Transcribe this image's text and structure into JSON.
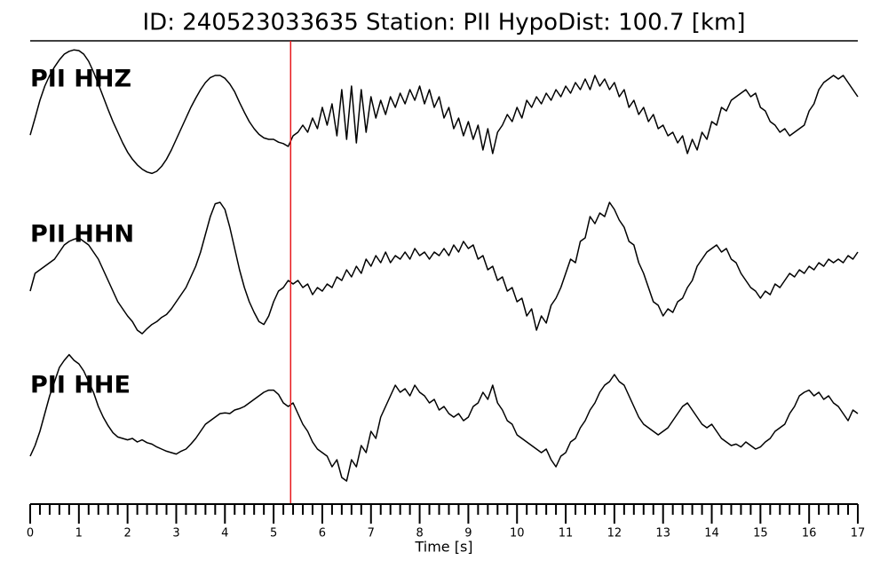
{
  "chart_data": {
    "type": "line",
    "title": "ID: 240523033635   Station: PII   HypoDist:   100.7 [km]",
    "xlabel": "Time [s]",
    "xlim": [
      0,
      17
    ],
    "xticks": [
      0,
      1,
      2,
      3,
      4,
      5,
      6,
      7,
      8,
      9,
      10,
      11,
      12,
      13,
      14,
      15,
      16,
      17
    ],
    "minor_xticks": [
      0.2,
      0.4,
      0.6,
      0.8,
      1.2,
      1.4,
      1.6,
      1.8,
      2.2,
      2.4,
      2.6,
      2.8,
      3.2,
      3.4,
      3.6,
      3.8,
      4.2,
      4.4,
      4.6,
      4.8,
      5.2,
      5.4,
      5.6,
      5.8,
      6.2,
      6.4,
      6.6,
      6.8,
      7.2,
      7.4,
      7.6,
      7.8,
      8.2,
      8.4,
      8.6,
      8.8,
      9.2,
      9.4,
      9.6,
      9.8,
      10.2,
      10.4,
      10.6,
      10.8,
      11.2,
      11.4,
      11.6,
      11.8,
      12.2,
      12.4,
      12.6,
      12.8,
      13.2,
      13.4,
      13.6,
      13.8,
      14.2,
      14.4,
      14.6,
      14.8,
      15.2,
      15.4,
      15.6,
      15.8,
      16.2,
      16.4,
      16.6,
      16.8
    ],
    "ylim": [
      -1,
      1
    ],
    "pick": {
      "x": 5.35,
      "color": "#e8191d"
    },
    "label_color": "#4e9a06",
    "x": [
      0,
      0.1,
      0.2,
      0.3,
      0.4,
      0.5,
      0.6,
      0.7,
      0.8,
      0.9,
      1,
      1.1,
      1.2,
      1.3,
      1.4,
      1.5,
      1.6,
      1.7,
      1.8,
      1.9,
      2,
      2.1,
      2.2,
      2.3,
      2.4,
      2.5,
      2.6,
      2.7,
      2.8,
      2.9,
      3,
      3.1,
      3.2,
      3.3,
      3.4,
      3.5,
      3.6,
      3.7,
      3.8,
      3.9,
      4,
      4.1,
      4.2,
      4.3,
      4.4,
      4.5,
      4.6,
      4.7,
      4.8,
      4.9,
      5,
      5.1,
      5.2,
      5.3,
      5.4,
      5.5,
      5.6,
      5.7,
      5.8,
      5.9,
      6,
      6.1,
      6.2,
      6.3,
      6.4,
      6.5,
      6.6,
      6.7,
      6.8,
      6.9,
      7,
      7.1,
      7.2,
      7.3,
      7.4,
      7.5,
      7.6,
      7.7,
      7.8,
      7.9,
      8,
      8.1,
      8.2,
      8.3,
      8.4,
      8.5,
      8.6,
      8.7,
      8.8,
      8.9,
      9,
      9.1,
      9.2,
      9.3,
      9.4,
      9.5,
      9.6,
      9.7,
      9.8,
      9.9,
      10,
      10.1,
      10.2,
      10.3,
      10.4,
      10.5,
      10.6,
      10.7,
      10.8,
      10.9,
      11,
      11.1,
      11.2,
      11.3,
      11.4,
      11.5,
      11.6,
      11.7,
      11.8,
      11.9,
      12,
      12.1,
      12.2,
      12.3,
      12.4,
      12.5,
      12.6,
      12.7,
      12.8,
      12.9,
      13,
      13.1,
      13.2,
      13.3,
      13.4,
      13.5,
      13.6,
      13.7,
      13.8,
      13.9,
      14,
      14.1,
      14.2,
      14.3,
      14.4,
      14.5,
      14.6,
      14.7,
      14.8,
      14.9,
      15,
      15.1,
      15.2,
      15.3,
      15.4,
      15.5,
      15.6,
      15.7,
      15.8,
      15.9,
      16,
      16.1,
      16.2,
      16.3,
      16.4,
      16.5,
      16.6,
      16.7,
      16.8,
      16.9,
      17
    ],
    "series": [
      {
        "name": "PII HHZ",
        "color": "#000000",
        "values": [
          -0.34,
          -0.1,
          0.15,
          0.35,
          0.5,
          0.62,
          0.72,
          0.8,
          0.84,
          0.86,
          0.85,
          0.8,
          0.7,
          0.55,
          0.38,
          0.2,
          0.02,
          -0.15,
          -0.3,
          -0.45,
          -0.58,
          -0.68,
          -0.76,
          -0.82,
          -0.86,
          -0.88,
          -0.85,
          -0.78,
          -0.68,
          -0.55,
          -0.4,
          -0.25,
          -0.1,
          0.05,
          0.18,
          0.3,
          0.4,
          0.47,
          0.5,
          0.5,
          0.46,
          0.38,
          0.27,
          0.12,
          -0.02,
          -0.15,
          -0.25,
          -0.33,
          -0.38,
          -0.4,
          -0.4,
          -0.44,
          -0.46,
          -0.5,
          -0.35,
          -0.3,
          -0.2,
          -0.3,
          -0.1,
          -0.25,
          0.05,
          -0.2,
          0.1,
          -0.35,
          0.3,
          -0.4,
          0.35,
          -0.45,
          0.3,
          -0.3,
          0.2,
          -0.1,
          0.15,
          -0.05,
          0.2,
          0.05,
          0.25,
          0.1,
          0.3,
          0.15,
          0.35,
          0.1,
          0.3,
          0.05,
          0.2,
          -0.1,
          0.05,
          -0.25,
          -0.1,
          -0.35,
          -0.15,
          -0.4,
          -0.2,
          -0.55,
          -0.25,
          -0.6,
          -0.3,
          -0.2,
          -0.05,
          -0.15,
          0.05,
          -0.1,
          0.15,
          0.05,
          0.2,
          0.1,
          0.25,
          0.15,
          0.3,
          0.2,
          0.35,
          0.25,
          0.4,
          0.3,
          0.45,
          0.3,
          0.5,
          0.35,
          0.45,
          0.3,
          0.4,
          0.2,
          0.3,
          0.05,
          0.15,
          -0.05,
          0.05,
          -0.15,
          -0.05,
          -0.25,
          -0.2,
          -0.35,
          -0.3,
          -0.45,
          -0.35,
          -0.6,
          -0.4,
          -0.55,
          -0.3,
          -0.4,
          -0.15,
          -0.2,
          0.05,
          0,
          0.15,
          0.2,
          0.25,
          0.3,
          0.2,
          0.25,
          0.05,
          0,
          -0.15,
          -0.2,
          -0.3,
          -0.25,
          -0.35,
          -0.3,
          -0.25,
          -0.2,
          0,
          0.1,
          0.3,
          0.4,
          0.45,
          0.5,
          0.45,
          0.5,
          0.4,
          0.3,
          0.2
        ]
      },
      {
        "name": "PII HHN",
        "color": "#000000",
        "values": [
          -0.35,
          -0.1,
          -0.05,
          0,
          0.05,
          0.1,
          0.2,
          0.3,
          0.35,
          0.38,
          0.4,
          0.35,
          0.3,
          0.2,
          0.1,
          -0.05,
          -0.2,
          -0.35,
          -0.5,
          -0.6,
          -0.7,
          -0.78,
          -0.9,
          -0.95,
          -0.88,
          -0.82,
          -0.78,
          -0.72,
          -0.68,
          -0.6,
          -0.5,
          -0.4,
          -0.3,
          -0.15,
          0,
          0.2,
          0.45,
          0.7,
          0.88,
          0.9,
          0.8,
          0.55,
          0.25,
          -0.05,
          -0.3,
          -0.5,
          -0.65,
          -0.78,
          -0.82,
          -0.7,
          -0.5,
          -0.35,
          -0.3,
          -0.2,
          -0.25,
          -0.2,
          -0.3,
          -0.25,
          -0.4,
          -0.3,
          -0.35,
          -0.25,
          -0.3,
          -0.15,
          -0.2,
          -0.05,
          -0.15,
          0,
          -0.1,
          0.1,
          0,
          0.15,
          0.05,
          0.2,
          0.05,
          0.15,
          0.1,
          0.2,
          0.1,
          0.25,
          0.15,
          0.2,
          0.1,
          0.2,
          0.15,
          0.25,
          0.15,
          0.3,
          0.2,
          0.35,
          0.25,
          0.3,
          0.1,
          0.15,
          -0.05,
          0,
          -0.2,
          -0.15,
          -0.35,
          -0.3,
          -0.5,
          -0.45,
          -0.7,
          -0.6,
          -0.9,
          -0.7,
          -0.8,
          -0.55,
          -0.45,
          -0.3,
          -0.1,
          0.1,
          0.05,
          0.35,
          0.4,
          0.7,
          0.6,
          0.75,
          0.7,
          0.9,
          0.8,
          0.65,
          0.55,
          0.35,
          0.3,
          0.05,
          -0.1,
          -0.3,
          -0.5,
          -0.55,
          -0.7,
          -0.6,
          -0.65,
          -0.5,
          -0.45,
          -0.3,
          -0.2,
          0,
          0.1,
          0.2,
          0.25,
          0.3,
          0.2,
          0.25,
          0.1,
          0.05,
          -0.1,
          -0.2,
          -0.3,
          -0.35,
          -0.45,
          -0.35,
          -0.4,
          -0.25,
          -0.3,
          -0.2,
          -0.1,
          -0.15,
          -0.05,
          -0.1,
          0,
          -0.05,
          0.05,
          0,
          0.1,
          0.05,
          0.1,
          0.05,
          0.15,
          0.1,
          0.2
        ]
      },
      {
        "name": "PII HHE",
        "color": "#000000",
        "values": [
          -0.55,
          -0.4,
          -0.2,
          0.05,
          0.3,
          0.5,
          0.7,
          0.8,
          0.88,
          0.8,
          0.75,
          0.65,
          0.5,
          0.35,
          0.15,
          0,
          -0.12,
          -0.22,
          -0.28,
          -0.3,
          -0.32,
          -0.3,
          -0.35,
          -0.32,
          -0.36,
          -0.38,
          -0.42,
          -0.45,
          -0.48,
          -0.5,
          -0.52,
          -0.48,
          -0.45,
          -0.38,
          -0.3,
          -0.2,
          -0.1,
          -0.05,
          0,
          0.05,
          0.06,
          0.05,
          0.1,
          0.12,
          0.15,
          0.2,
          0.25,
          0.3,
          0.35,
          0.38,
          0.38,
          0.32,
          0.2,
          0.15,
          0.2,
          0.05,
          -0.1,
          -0.2,
          -0.35,
          -0.45,
          -0.5,
          -0.55,
          -0.7,
          -0.6,
          -0.85,
          -0.9,
          -0.6,
          -0.7,
          -0.4,
          -0.5,
          -0.2,
          -0.3,
          0,
          0.15,
          0.3,
          0.45,
          0.35,
          0.4,
          0.3,
          0.45,
          0.35,
          0.3,
          0.2,
          0.25,
          0.1,
          0.15,
          0.05,
          0,
          0.05,
          -0.05,
          0,
          0.15,
          0.2,
          0.35,
          0.25,
          0.45,
          0.2,
          0.1,
          -0.05,
          -0.1,
          -0.25,
          -0.3,
          -0.35,
          -0.4,
          -0.45,
          -0.5,
          -0.45,
          -0.6,
          -0.7,
          -0.55,
          -0.5,
          -0.35,
          -0.3,
          -0.15,
          -0.05,
          0.1,
          0.2,
          0.35,
          0.45,
          0.5,
          0.6,
          0.5,
          0.45,
          0.3,
          0.15,
          0,
          -0.1,
          -0.15,
          -0.2,
          -0.25,
          -0.2,
          -0.15,
          -0.05,
          0.05,
          0.15,
          0.2,
          0.1,
          0,
          -0.1,
          -0.15,
          -0.1,
          -0.2,
          -0.3,
          -0.35,
          -0.4,
          -0.38,
          -0.42,
          -0.35,
          -0.4,
          -0.45,
          -0.42,
          -0.35,
          -0.3,
          -0.2,
          -0.15,
          -0.1,
          0.05,
          0.15,
          0.3,
          0.35,
          0.38,
          0.3,
          0.35,
          0.25,
          0.3,
          0.2,
          0.15,
          0.05,
          -0.05,
          0.1,
          0.05
        ]
      }
    ]
  }
}
